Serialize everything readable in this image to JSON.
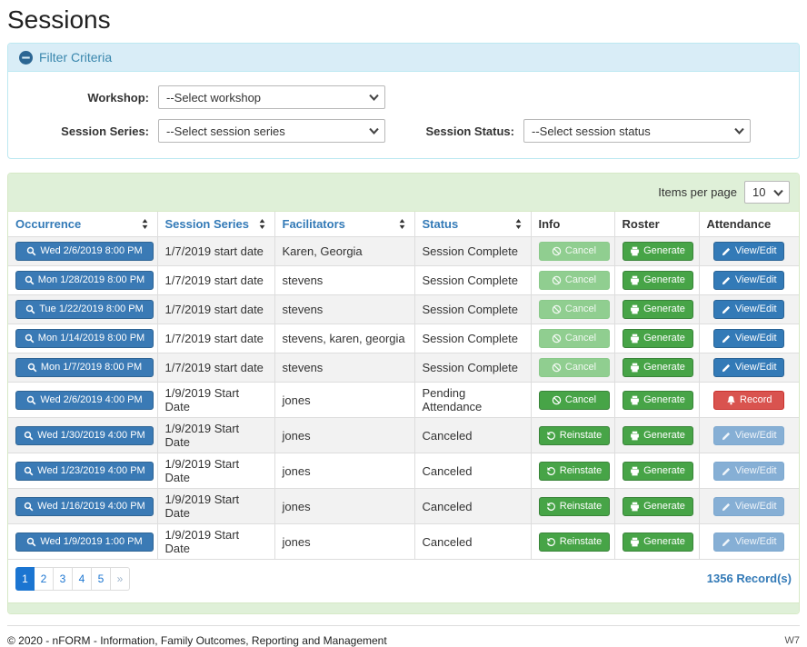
{
  "page": {
    "title": "Sessions"
  },
  "filter": {
    "title": "Filter Criteria",
    "collapse_icon": "minus-circle-icon",
    "fields": [
      {
        "id": "workshop",
        "label": "Workshop:",
        "value": "--Select workshop"
      },
      {
        "id": "session_series",
        "label": "Session Series:",
        "value": "--Select session series"
      },
      {
        "id": "session_status",
        "label": "Session Status:",
        "value": "--Select session status"
      }
    ]
  },
  "table": {
    "items_per_page_label": "Items per page",
    "items_per_page_value": "10",
    "columns": [
      {
        "label": "Occurrence",
        "sortable": true
      },
      {
        "label": "Session Series",
        "sortable": true
      },
      {
        "label": "Facilitators",
        "sortable": true
      },
      {
        "label": "Status",
        "sortable": true
      },
      {
        "label": "Info",
        "sortable": false
      },
      {
        "label": "Roster",
        "sortable": false
      },
      {
        "label": "Attendance",
        "sortable": false
      }
    ],
    "rows": [
      {
        "occurrence": "Wed 2/6/2019 8:00 PM",
        "session_series": "1/7/2019 start date",
        "facilitators": "Karen, Georgia",
        "status": "Session Complete",
        "info": {
          "label": "Cancel",
          "icon": "ban-icon",
          "style": "green-disabled"
        },
        "roster": {
          "label": "Generate",
          "icon": "printer-icon",
          "style": "green"
        },
        "attendance": {
          "label": "View/Edit",
          "icon": "pencil-icon",
          "style": "blue"
        }
      },
      {
        "occurrence": "Mon 1/28/2019 8:00 PM",
        "session_series": "1/7/2019 start date",
        "facilitators": "stevens",
        "status": "Session Complete",
        "info": {
          "label": "Cancel",
          "icon": "ban-icon",
          "style": "green-disabled"
        },
        "roster": {
          "label": "Generate",
          "icon": "printer-icon",
          "style": "green"
        },
        "attendance": {
          "label": "View/Edit",
          "icon": "pencil-icon",
          "style": "blue"
        }
      },
      {
        "occurrence": "Tue 1/22/2019 8:00 PM",
        "session_series": "1/7/2019 start date",
        "facilitators": "stevens",
        "status": "Session Complete",
        "info": {
          "label": "Cancel",
          "icon": "ban-icon",
          "style": "green-disabled"
        },
        "roster": {
          "label": "Generate",
          "icon": "printer-icon",
          "style": "green"
        },
        "attendance": {
          "label": "View/Edit",
          "icon": "pencil-icon",
          "style": "blue"
        }
      },
      {
        "occurrence": "Mon 1/14/2019 8:00 PM",
        "session_series": "1/7/2019 start date",
        "facilitators": "stevens, karen, georgia",
        "status": "Session Complete",
        "info": {
          "label": "Cancel",
          "icon": "ban-icon",
          "style": "green-disabled"
        },
        "roster": {
          "label": "Generate",
          "icon": "printer-icon",
          "style": "green"
        },
        "attendance": {
          "label": "View/Edit",
          "icon": "pencil-icon",
          "style": "blue"
        }
      },
      {
        "occurrence": "Mon 1/7/2019 8:00 PM",
        "session_series": "1/7/2019 start date",
        "facilitators": "stevens",
        "status": "Session Complete",
        "info": {
          "label": "Cancel",
          "icon": "ban-icon",
          "style": "green-disabled"
        },
        "roster": {
          "label": "Generate",
          "icon": "printer-icon",
          "style": "green"
        },
        "attendance": {
          "label": "View/Edit",
          "icon": "pencil-icon",
          "style": "blue"
        }
      },
      {
        "occurrence": "Wed 2/6/2019 4:00 PM",
        "session_series": "1/9/2019 Start Date",
        "facilitators": "jones",
        "status": "Pending Attendance",
        "info": {
          "label": "Cancel",
          "icon": "ban-icon",
          "style": "green"
        },
        "roster": {
          "label": "Generate",
          "icon": "printer-icon",
          "style": "green"
        },
        "attendance": {
          "label": "Record",
          "icon": "bell-icon",
          "style": "red"
        }
      },
      {
        "occurrence": "Wed 1/30/2019 4:00 PM",
        "session_series": "1/9/2019 Start Date",
        "facilitators": "jones",
        "status": "Canceled",
        "info": {
          "label": "Reinstate",
          "icon": "undo-icon",
          "style": "green"
        },
        "roster": {
          "label": "Generate",
          "icon": "printer-icon",
          "style": "green"
        },
        "attendance": {
          "label": "View/Edit",
          "icon": "pencil-icon",
          "style": "blue-disabled"
        }
      },
      {
        "occurrence": "Wed 1/23/2019 4:00 PM",
        "session_series": "1/9/2019 Start Date",
        "facilitators": "jones",
        "status": "Canceled",
        "info": {
          "label": "Reinstate",
          "icon": "undo-icon",
          "style": "green"
        },
        "roster": {
          "label": "Generate",
          "icon": "printer-icon",
          "style": "green"
        },
        "attendance": {
          "label": "View/Edit",
          "icon": "pencil-icon",
          "style": "blue-disabled"
        }
      },
      {
        "occurrence": "Wed 1/16/2019 4:00 PM",
        "session_series": "1/9/2019 Start Date",
        "facilitators": "jones",
        "status": "Canceled",
        "info": {
          "label": "Reinstate",
          "icon": "undo-icon",
          "style": "green"
        },
        "roster": {
          "label": "Generate",
          "icon": "printer-icon",
          "style": "green"
        },
        "attendance": {
          "label": "View/Edit",
          "icon": "pencil-icon",
          "style": "blue-disabled"
        }
      },
      {
        "occurrence": "Wed 1/9/2019 1:00 PM",
        "session_series": "1/9/2019 Start Date",
        "facilitators": "jones",
        "status": "Canceled",
        "info": {
          "label": "Reinstate",
          "icon": "undo-icon",
          "style": "green"
        },
        "roster": {
          "label": "Generate",
          "icon": "printer-icon",
          "style": "green"
        },
        "attendance": {
          "label": "View/Edit",
          "icon": "pencil-icon",
          "style": "blue-disabled"
        }
      }
    ]
  },
  "pagination": {
    "pages": [
      "1",
      "2",
      "3",
      "4",
      "5",
      "»"
    ],
    "active": "1",
    "record_count": "1356 Record(s)"
  },
  "footer": {
    "copyright": "© 2020 - nFORM - Information, Family Outcomes, Reporting and Management",
    "environment": "W7"
  },
  "colors": {
    "link_blue": "#337ab7",
    "occurrence_button_blue": "#3a7ab5",
    "action_green": "#47a447",
    "action_green_disabled": "#90ce90",
    "action_blue_disabled": "#86afd5",
    "action_red": "#d9534f",
    "filter_heading_bg": "#d9edf7",
    "filter_heading_border": "#bce8f1",
    "filter_heading_text": "#3a87ad",
    "table_heading_bg": "#dff0d8",
    "table_heading_border": "#d6e9c6",
    "pagination_active_blue": "#1b75d1",
    "row_stripe": "#f2f2f2"
  }
}
